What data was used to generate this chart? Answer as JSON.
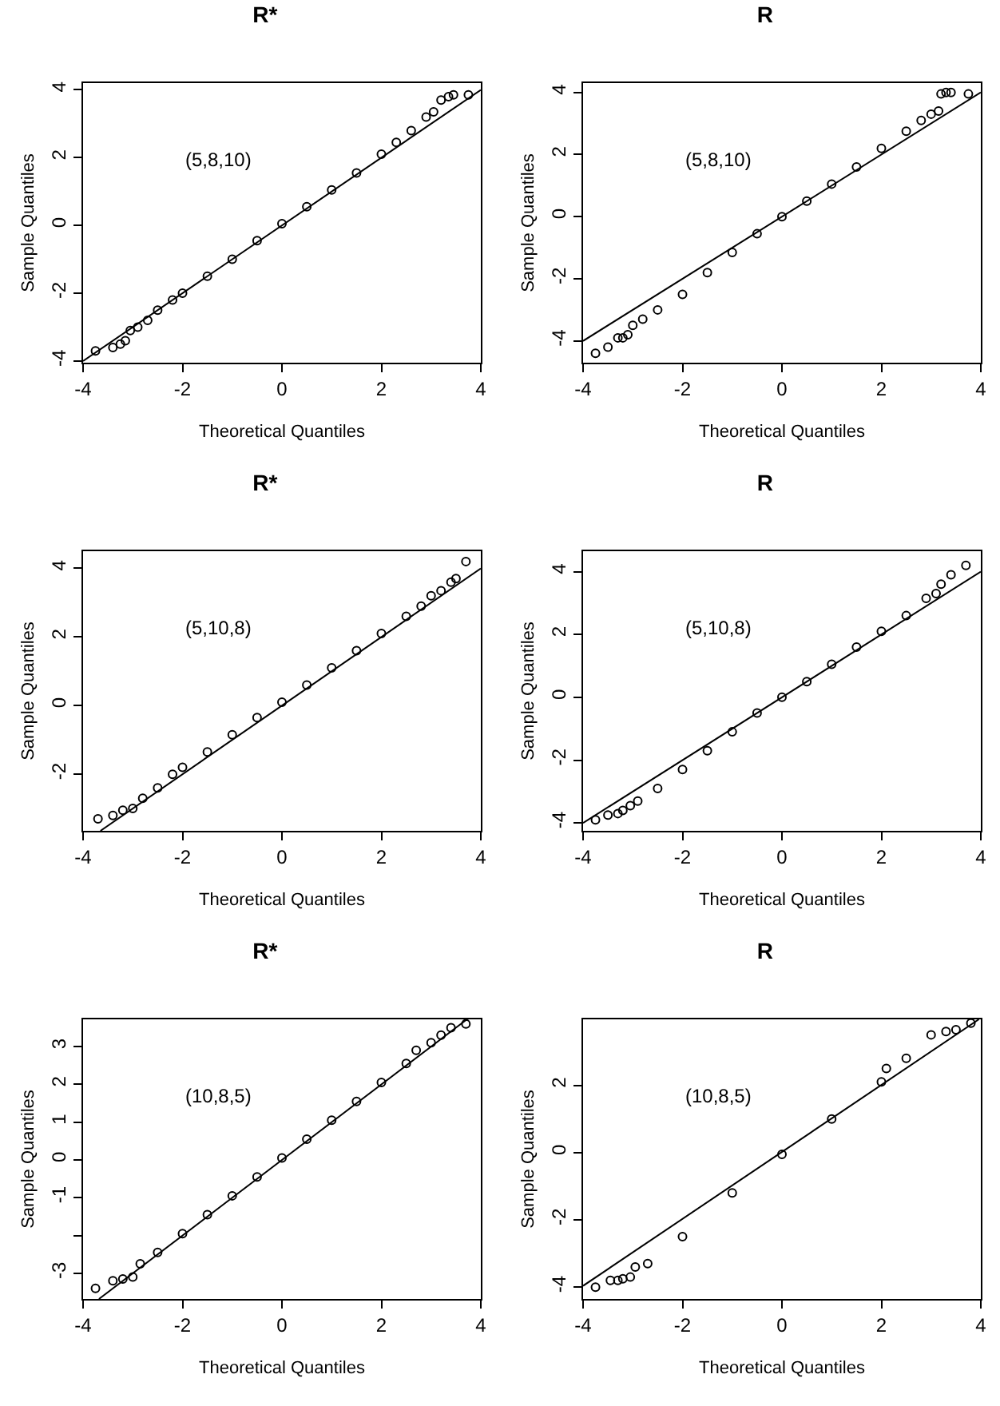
{
  "chart_data": [
    {
      "type": "scatter",
      "title": "R*",
      "xlabel": "Theoretical Quantiles",
      "ylabel": "Sample Quantiles",
      "annotations": [
        "(5,8,10)"
      ],
      "grid": false,
      "xlim": [
        -4,
        4
      ],
      "xticks": [
        -4,
        -2,
        0,
        2,
        4
      ],
      "ylim": [
        -4.05,
        4.2
      ],
      "yticks": [
        -4,
        -2,
        0,
        2,
        4
      ],
      "series": [
        {
          "marker": "circle",
          "color": "#000000",
          "x": [
            -3.75,
            -3.4,
            -3.25,
            -3.15,
            -3.05,
            -2.9,
            -2.7,
            -2.5,
            -2.2,
            -2,
            -1.5,
            -1,
            -0.5,
            0,
            0.5,
            1,
            1.5,
            2,
            2.3,
            2.6,
            2.9,
            3.05,
            3.2,
            3.35,
            3.45,
            3.75
          ],
          "values": [
            -3.7,
            -3.6,
            -3.5,
            -3.4,
            -3.1,
            -3.0,
            -2.8,
            -2.5,
            -2.2,
            -2.0,
            -1.5,
            -1.0,
            -0.45,
            0.05,
            0.55,
            1.05,
            1.55,
            2.1,
            2.45,
            2.8,
            3.2,
            3.35,
            3.7,
            3.8,
            3.85,
            3.85
          ]
        },
        {
          "type": "line",
          "color": "#000000",
          "x": [
            -4,
            4
          ],
          "values": [
            -4,
            4
          ]
        }
      ]
    },
    {
      "type": "scatter",
      "title": "R",
      "xlabel": "Theoretical Quantiles",
      "ylabel": "Sample Quantiles",
      "annotations": [
        "(5,8,10)"
      ],
      "grid": false,
      "xlim": [
        -4,
        4
      ],
      "xticks": [
        -4,
        -2,
        0,
        2,
        4
      ],
      "ylim": [
        -4.7,
        4.3
      ],
      "yticks": [
        -4,
        -2,
        0,
        2,
        4
      ],
      "series": [
        {
          "marker": "circle",
          "color": "#000000",
          "x": [
            -3.75,
            -3.5,
            -3.3,
            -3.2,
            -3.1,
            -3.0,
            -2.8,
            -2.5,
            -2,
            -1.5,
            -1,
            -0.5,
            0,
            0.5,
            1,
            1.5,
            2,
            2.5,
            2.8,
            3.0,
            3.15,
            3.2,
            3.3,
            3.4,
            3.75
          ],
          "values": [
            -4.4,
            -4.2,
            -3.9,
            -3.9,
            -3.8,
            -3.5,
            -3.3,
            -3.0,
            -2.5,
            -1.8,
            -1.15,
            -0.55,
            0,
            0.5,
            1.05,
            1.6,
            2.2,
            2.75,
            3.1,
            3.3,
            3.4,
            3.95,
            4.0,
            4.0,
            3.95
          ]
        },
        {
          "type": "line",
          "color": "#000000",
          "x": [
            -4,
            4
          ],
          "values": [
            -4,
            4
          ]
        }
      ]
    },
    {
      "type": "scatter",
      "title": "R*",
      "xlabel": "Theoretical Quantiles",
      "ylabel": "Sample Quantiles",
      "annotations": [
        "(5,10,8)"
      ],
      "grid": false,
      "xlim": [
        -4,
        4
      ],
      "xticks": [
        -4,
        -2,
        0,
        2,
        4
      ],
      "ylim": [
        -3.65,
        4.5
      ],
      "yticks": [
        -2,
        0,
        2,
        4
      ],
      "series": [
        {
          "marker": "circle",
          "color": "#000000",
          "x": [
            -3.7,
            -3.4,
            -3.2,
            -3.0,
            -2.8,
            -2.5,
            -2.2,
            -2,
            -1.5,
            -1,
            -0.5,
            0,
            0.5,
            1,
            1.5,
            2,
            2.5,
            2.8,
            3.0,
            3.2,
            3.4,
            3.5,
            3.7
          ],
          "values": [
            -3.3,
            -3.2,
            -3.05,
            -3.0,
            -2.7,
            -2.4,
            -2.0,
            -1.8,
            -1.35,
            -0.85,
            -0.35,
            0.1,
            0.6,
            1.1,
            1.6,
            2.1,
            2.6,
            2.9,
            3.2,
            3.35,
            3.6,
            3.7,
            4.2
          ]
        },
        {
          "type": "line",
          "color": "#000000",
          "x": [
            -3.65,
            4
          ],
          "values": [
            -3.65,
            4
          ]
        }
      ]
    },
    {
      "type": "scatter",
      "title": "R",
      "xlabel": "Theoretical Quantiles",
      "ylabel": "Sample Quantiles",
      "annotations": [
        "(5,10,8)"
      ],
      "grid": false,
      "xlim": [
        -4,
        4
      ],
      "xticks": [
        -4,
        -2,
        0,
        2,
        4
      ],
      "ylim": [
        -4.25,
        4.65
      ],
      "yticks": [
        -4,
        -2,
        0,
        2,
        4
      ],
      "series": [
        {
          "marker": "circle",
          "color": "#000000",
          "x": [
            -3.75,
            -3.5,
            -3.3,
            -3.2,
            -3.05,
            -2.9,
            -2.5,
            -2,
            -1.5,
            -1,
            -0.5,
            0,
            0.5,
            1,
            1.5,
            2,
            2.5,
            2.9,
            3.1,
            3.2,
            3.4,
            3.7
          ],
          "values": [
            -3.9,
            -3.75,
            -3.7,
            -3.6,
            -3.45,
            -3.3,
            -2.9,
            -2.3,
            -1.7,
            -1.1,
            -0.5,
            0,
            0.5,
            1.05,
            1.6,
            2.1,
            2.6,
            3.15,
            3.3,
            3.6,
            3.9,
            4.2
          ]
        },
        {
          "type": "line",
          "color": "#000000",
          "x": [
            -4,
            4
          ],
          "values": [
            -4,
            4
          ]
        }
      ]
    },
    {
      "type": "scatter",
      "title": "R*",
      "xlabel": "Theoretical Quantiles",
      "ylabel": "Sample Quantiles",
      "annotations": [
        "(10,8,5)"
      ],
      "grid": false,
      "xlim": [
        -4,
        4
      ],
      "xticks": [
        -4,
        -2,
        0,
        2,
        4
      ],
      "ylim": [
        -3.68,
        3.72
      ],
      "yticks": [
        {
          "value": -3,
          "label": "-3"
        },
        {
          "value": -2,
          "label": null
        },
        -1,
        0,
        1,
        2,
        3
      ],
      "series": [
        {
          "marker": "circle",
          "color": "#000000",
          "x": [
            -3.75,
            -3.4,
            -3.2,
            -3.0,
            -2.85,
            -2.5,
            -2,
            -1.5,
            -1,
            -0.5,
            0,
            0.5,
            1,
            1.5,
            2,
            2.5,
            2.7,
            3.0,
            3.2,
            3.4,
            3.7
          ],
          "values": [
            -3.4,
            -3.2,
            -3.15,
            -3.1,
            -2.75,
            -2.45,
            -1.95,
            -1.45,
            -0.95,
            -0.45,
            0.05,
            0.55,
            1.05,
            1.55,
            2.05,
            2.55,
            2.9,
            3.1,
            3.3,
            3.5,
            3.6
          ]
        },
        {
          "type": "line",
          "color": "#000000",
          "x": [
            -3.68,
            3.72
          ],
          "values": [
            -3.68,
            3.72
          ]
        }
      ]
    },
    {
      "type": "scatter",
      "title": "R",
      "xlabel": "Theoretical Quantiles",
      "ylabel": "Sample Quantiles",
      "annotations": [
        "(10,8,5)"
      ],
      "grid": false,
      "xlim": [
        -4,
        4
      ],
      "xticks": [
        -4,
        -2,
        0,
        2,
        4
      ],
      "ylim": [
        -4.35,
        3.96
      ],
      "yticks": [
        -4,
        -2,
        0,
        2
      ],
      "series": [
        {
          "marker": "circle",
          "color": "#000000",
          "x": [
            -3.75,
            -3.45,
            -3.3,
            -3.2,
            -3.05,
            -2.95,
            -2.7,
            -2.0,
            -1,
            0,
            1,
            2,
            2.1,
            2.5,
            3.0,
            3.3,
            3.5,
            3.8
          ],
          "values": [
            -4.0,
            -3.8,
            -3.8,
            -3.75,
            -3.7,
            -3.4,
            -3.3,
            -2.5,
            -1.2,
            -0.05,
            1.0,
            2.1,
            2.5,
            2.8,
            3.5,
            3.6,
            3.65,
            3.85
          ]
        },
        {
          "type": "line",
          "color": "#000000",
          "x": [
            -4,
            3.96
          ],
          "values": [
            -3.96,
            3.96
          ]
        }
      ]
    }
  ]
}
